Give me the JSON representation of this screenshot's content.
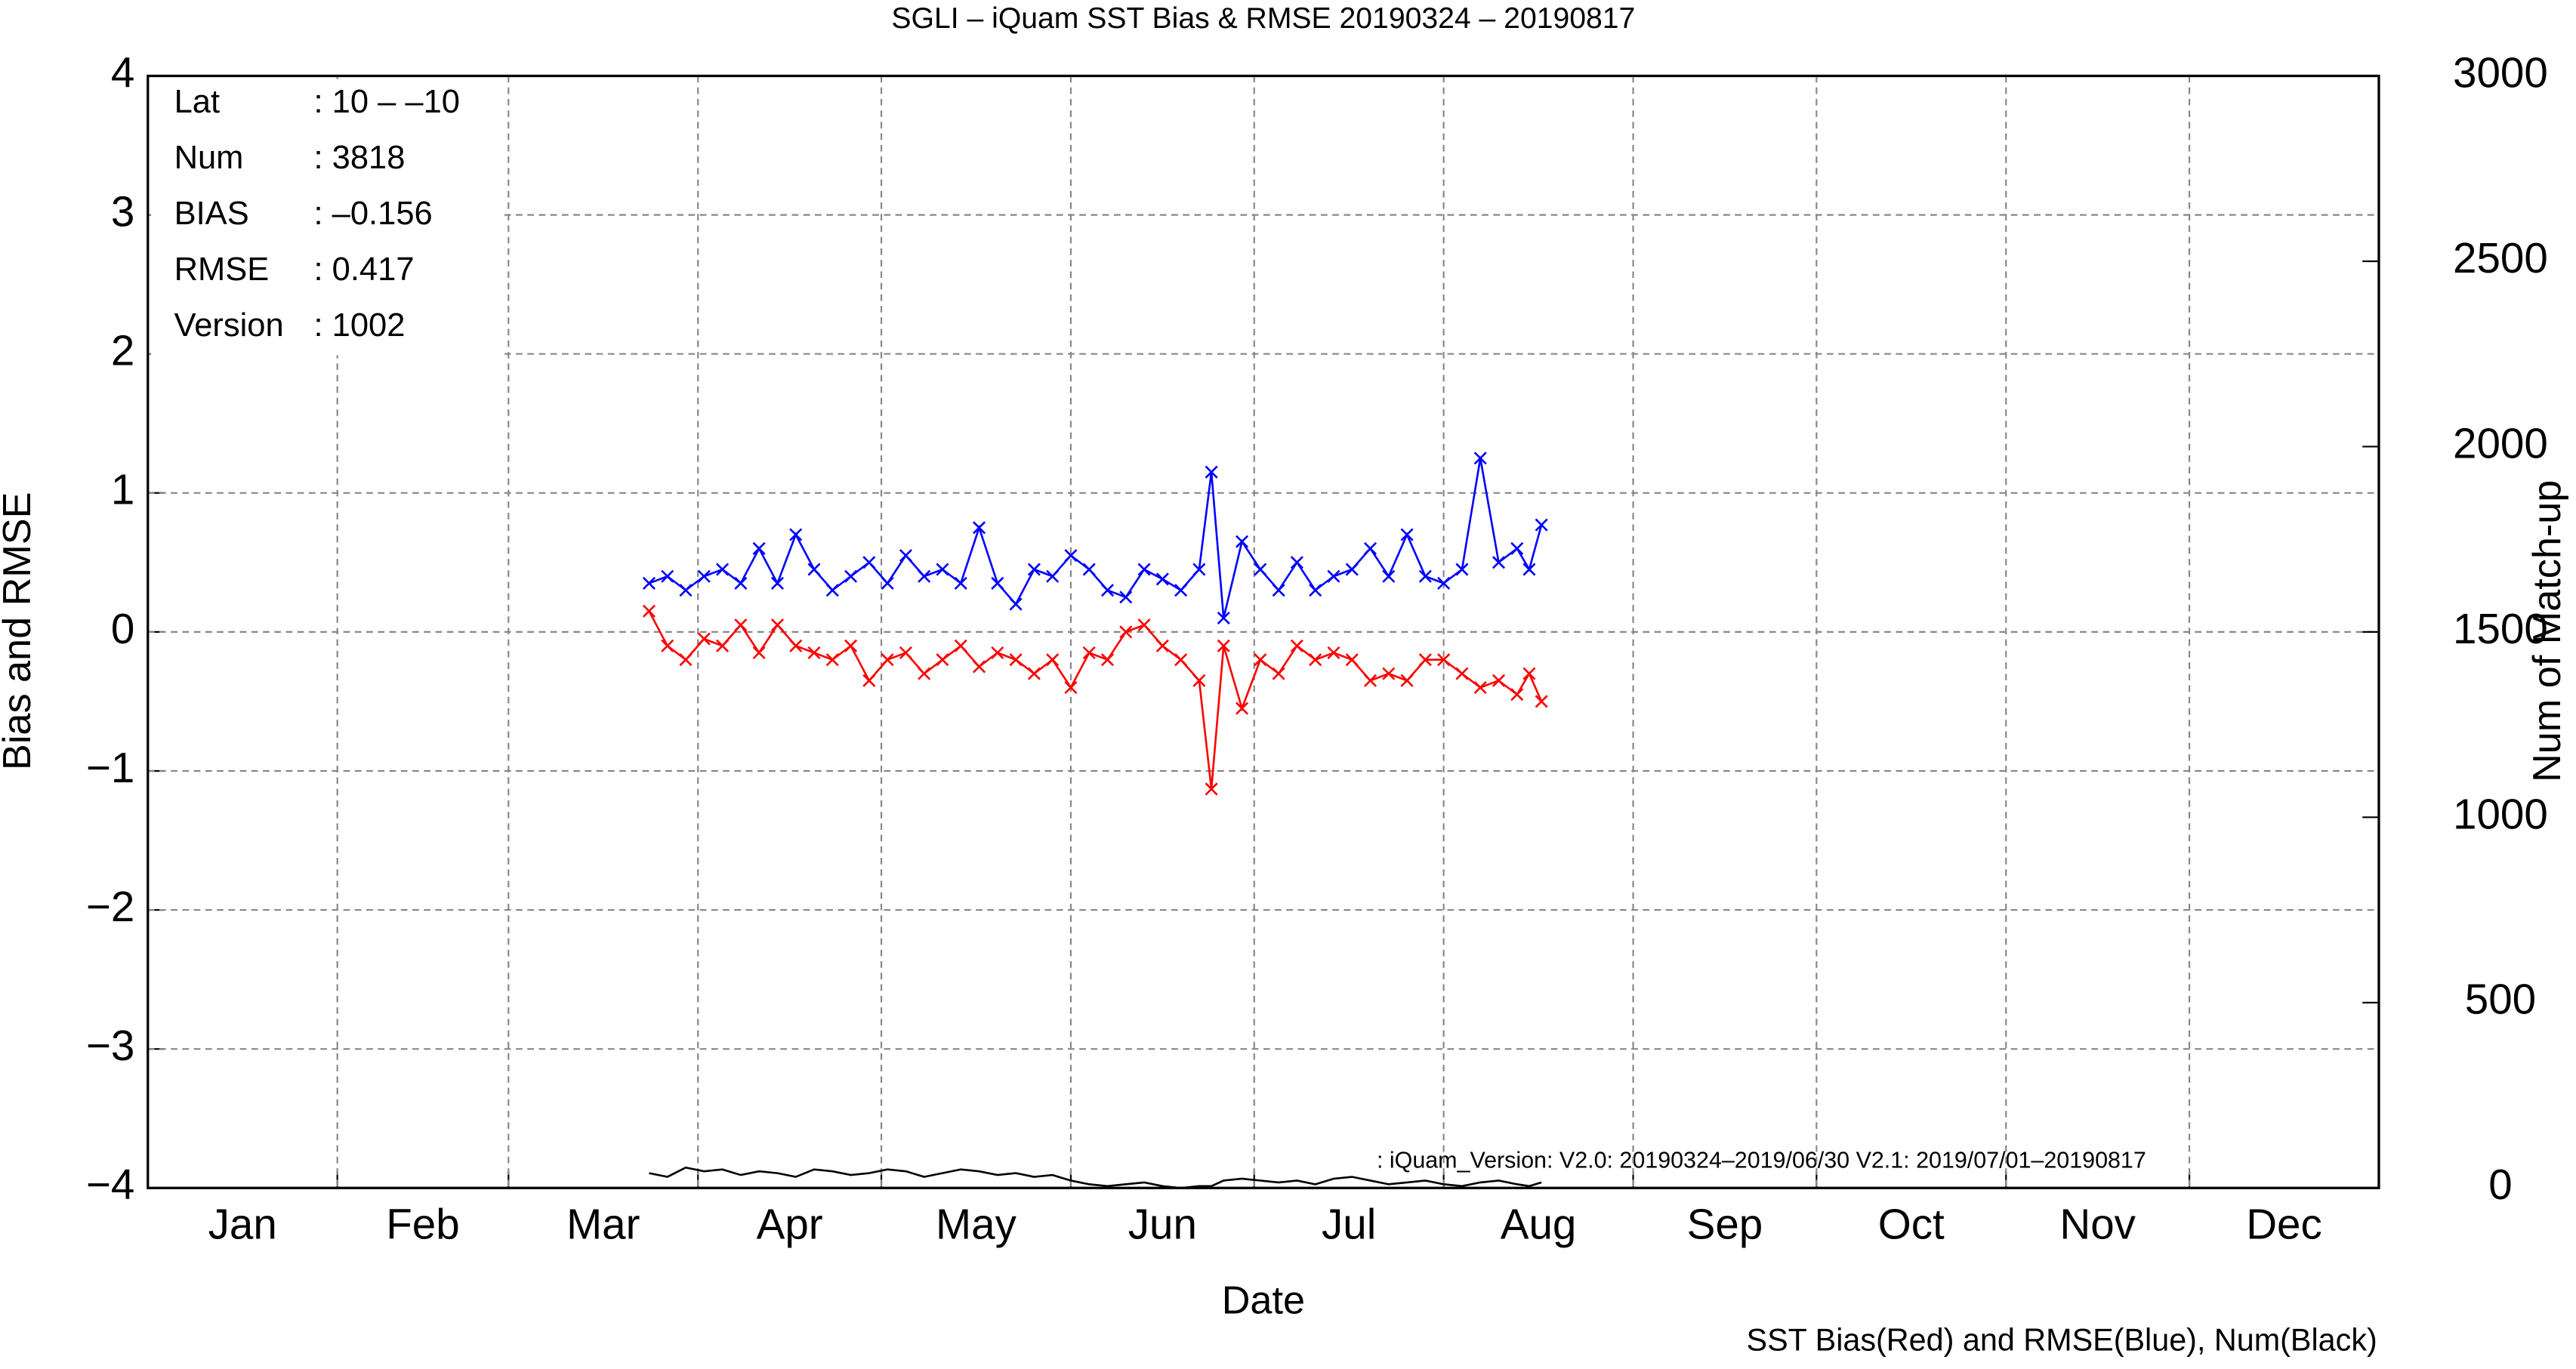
{
  "chart_data": {
    "type": "line",
    "title": "SGLI – iQuam  SST Bias & RMSE 20190324 – 20190817",
    "xlabel": "Date",
    "ylabel": "Bias and RMSE",
    "y2label": "Num of Match-up",
    "legend_note": "SST Bias(Red) and RMSE(Blue), Num(Black)",
    "annotation": ": iQuam_Version: V2.0: 20190324–2019/06/30 V2.1: 2019/07/01–20190817",
    "info": [
      {
        "label": "Lat",
        "value": ": 10 – –10"
      },
      {
        "label": "Num",
        "value": ": 3818"
      },
      {
        "label": "BIAS",
        "value": ": –0.156"
      },
      {
        "label": "RMSE",
        "value": ": 0.417"
      },
      {
        "label": "Version",
        "value": ": 1002"
      }
    ],
    "months": [
      "Jan",
      "Feb",
      "Mar",
      "Apr",
      "May",
      "Jun",
      "Jul",
      "Aug",
      "Sep",
      "Oct",
      "Nov",
      "Dec"
    ],
    "xlim": [
      1,
      366
    ],
    "xticks": [
      1,
      32,
      60,
      91,
      121,
      152,
      182,
      213,
      244,
      274,
      305,
      335,
      366
    ],
    "ylim": [
      -4,
      4
    ],
    "yticks": [
      {
        "value": -4,
        "label": "−4"
      },
      {
        "value": -3,
        "label": "−3"
      },
      {
        "value": -2,
        "label": "−2"
      },
      {
        "value": -1,
        "label": "−1"
      },
      0,
      1,
      2,
      3,
      4
    ],
    "y2lim": [
      0,
      3000
    ],
    "y2ticks": [
      0,
      500,
      1000,
      1500,
      2000,
      2500,
      3000
    ],
    "grid": true,
    "x": [
      83,
      86,
      89,
      92,
      95,
      98,
      101,
      104,
      107,
      110,
      113,
      116,
      119,
      122,
      125,
      128,
      131,
      134,
      137,
      140,
      143,
      146,
      149,
      152,
      155,
      158,
      161,
      164,
      167,
      170,
      173,
      175,
      177,
      180,
      183,
      186,
      189,
      192,
      195,
      198,
      201,
      204,
      207,
      210,
      213,
      216,
      219,
      222,
      225,
      227,
      229
    ],
    "series": [
      {
        "color": "#ff0000",
        "marker": "x",
        "values": [
          0.15,
          -0.1,
          -0.2,
          -0.05,
          -0.1,
          0.05,
          -0.15,
          0.05,
          -0.1,
          -0.15,
          -0.2,
          -0.1,
          -0.35,
          -0.2,
          -0.15,
          -0.3,
          -0.2,
          -0.1,
          -0.25,
          -0.15,
          -0.2,
          -0.3,
          -0.2,
          -0.4,
          -0.15,
          -0.2,
          0.0,
          0.05,
          -0.1,
          -0.2,
          -0.35,
          -1.13,
          -0.1,
          -0.55,
          -0.2,
          -0.3,
          -0.1,
          -0.2,
          -0.15,
          -0.2,
          -0.35,
          -0.3,
          -0.35,
          -0.2,
          -0.2,
          -0.3,
          -0.4,
          -0.35,
          -0.45,
          -0.3,
          -0.5
        ]
      },
      {
        "color": "#0000ff",
        "marker": "x",
        "values": [
          0.35,
          0.4,
          0.3,
          0.4,
          0.45,
          0.35,
          0.6,
          0.35,
          0.7,
          0.45,
          0.3,
          0.4,
          0.5,
          0.35,
          0.55,
          0.4,
          0.45,
          0.35,
          0.75,
          0.35,
          0.2,
          0.45,
          0.4,
          0.55,
          0.45,
          0.3,
          0.25,
          0.45,
          0.38,
          0.3,
          0.45,
          1.15,
          0.1,
          0.65,
          0.45,
          0.3,
          0.5,
          0.3,
          0.4,
          0.45,
          0.6,
          0.4,
          0.7,
          0.4,
          0.35,
          0.45,
          1.25,
          0.5,
          0.6,
          0.45,
          0.77
        ]
      },
      {
        "color": "#000000",
        "axis": "y2",
        "values": [
          40,
          30,
          55,
          45,
          50,
          35,
          45,
          40,
          30,
          50,
          45,
          35,
          40,
          50,
          45,
          30,
          40,
          50,
          45,
          35,
          40,
          30,
          35,
          20,
          10,
          5,
          10,
          15,
          5,
          0,
          5,
          5,
          20,
          25,
          20,
          15,
          20,
          10,
          25,
          30,
          20,
          10,
          15,
          20,
          10,
          5,
          15,
          20,
          10,
          5,
          15
        ]
      }
    ]
  }
}
